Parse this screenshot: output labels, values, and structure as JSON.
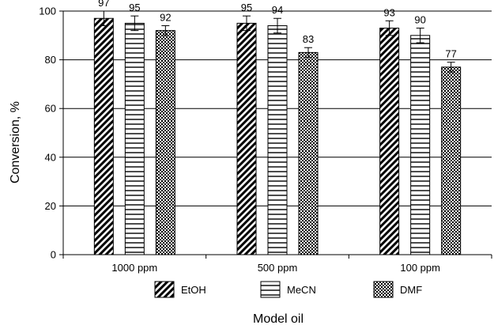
{
  "chart_data": {
    "type": "bar",
    "categories": [
      "1000 ppm",
      "500 ppm",
      "100 ppm"
    ],
    "series": [
      {
        "name": "EtOH",
        "values": [
          97,
          95,
          93
        ],
        "errors": [
          3,
          3,
          3
        ],
        "pattern": "diagonal"
      },
      {
        "name": "MeCN",
        "values": [
          95,
          94,
          90
        ],
        "errors": [
          3,
          3,
          3
        ],
        "pattern": "horizontal"
      },
      {
        "name": "DMF",
        "values": [
          92,
          83,
          77
        ],
        "errors": [
          2,
          2,
          2
        ],
        "pattern": "checker"
      }
    ],
    "ylabel": "Conversion, %",
    "xlabel": "Model oil",
    "ylim": [
      0,
      100
    ],
    "yticks": [
      0,
      20,
      40,
      60,
      80,
      100
    ],
    "grid": "horizontal",
    "legend_position": "bottom"
  }
}
